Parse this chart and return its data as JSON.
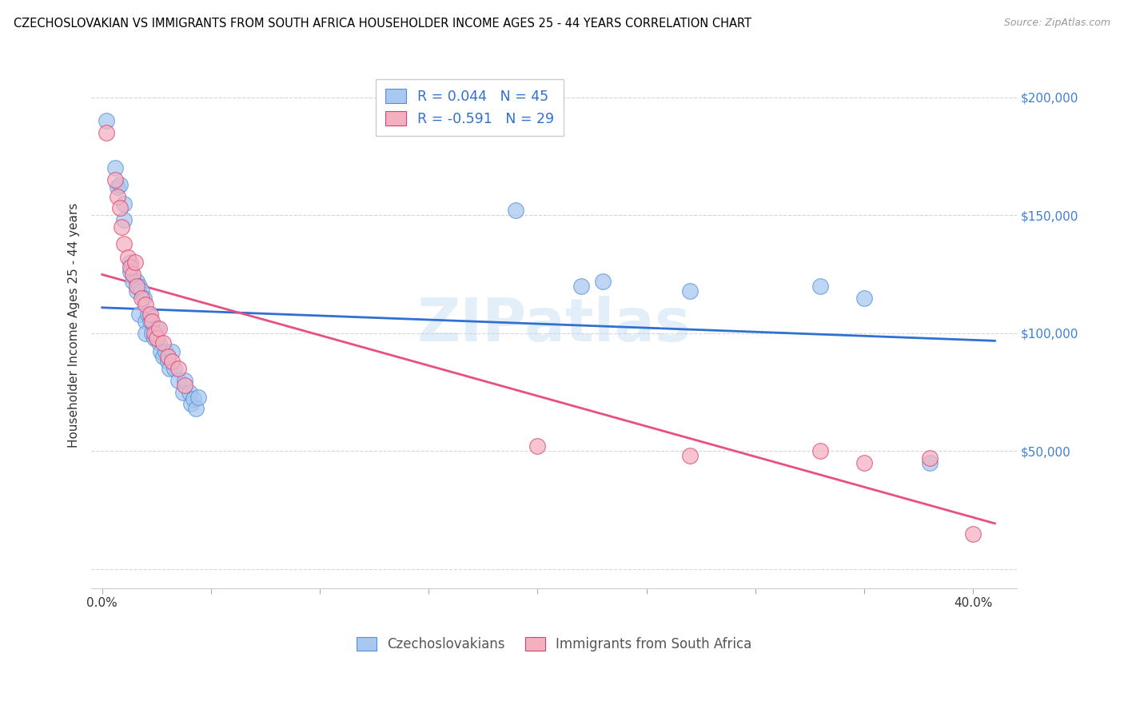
{
  "title": "CZECHOSLOVAKIAN VS IMMIGRANTS FROM SOUTH AFRICA HOUSEHOLDER INCOME AGES 25 - 44 YEARS CORRELATION CHART",
  "source": "Source: ZipAtlas.com",
  "xlim": [
    -0.005,
    0.42
  ],
  "ylim": [
    -8000,
    215000
  ],
  "ylabel": "Householder Income Ages 25 - 44 years",
  "blue_label": "Czechoslovakians",
  "pink_label": "Immigrants from South Africa",
  "blue_R": "0.044",
  "blue_N": "45",
  "pink_R": "-0.591",
  "pink_N": "29",
  "blue_color": "#A8C8F0",
  "pink_color": "#F5B0C0",
  "blue_line_color": "#3070D0",
  "pink_line_color": "#E85080",
  "blue_edge_color": "#5090D8",
  "pink_edge_color": "#D84070",
  "watermark": "ZIPatlas",
  "ytick_color": "#4080D0",
  "blue_points": [
    [
      0.002,
      190000
    ],
    [
      0.006,
      170000
    ],
    [
      0.007,
      162000
    ],
    [
      0.008,
      163000
    ],
    [
      0.01,
      155000
    ],
    [
      0.01,
      148000
    ],
    [
      0.013,
      130000
    ],
    [
      0.013,
      126000
    ],
    [
      0.014,
      122000
    ],
    [
      0.016,
      122000
    ],
    [
      0.016,
      118000
    ],
    [
      0.017,
      120000
    ],
    [
      0.017,
      108000
    ],
    [
      0.018,
      118000
    ],
    [
      0.019,
      115000
    ],
    [
      0.02,
      105000
    ],
    [
      0.02,
      100000
    ],
    [
      0.021,
      108000
    ],
    [
      0.022,
      105000
    ],
    [
      0.023,
      100000
    ],
    [
      0.024,
      98000
    ],
    [
      0.025,
      102000
    ],
    [
      0.026,
      96000
    ],
    [
      0.027,
      92000
    ],
    [
      0.028,
      90000
    ],
    [
      0.029,
      92000
    ],
    [
      0.03,
      88000
    ],
    [
      0.031,
      85000
    ],
    [
      0.032,
      92000
    ],
    [
      0.033,
      85000
    ],
    [
      0.035,
      80000
    ],
    [
      0.037,
      75000
    ],
    [
      0.038,
      80000
    ],
    [
      0.04,
      75000
    ],
    [
      0.041,
      70000
    ],
    [
      0.042,
      72000
    ],
    [
      0.043,
      68000
    ],
    [
      0.044,
      73000
    ],
    [
      0.19,
      152000
    ],
    [
      0.22,
      120000
    ],
    [
      0.23,
      122000
    ],
    [
      0.27,
      118000
    ],
    [
      0.33,
      120000
    ],
    [
      0.35,
      115000
    ],
    [
      0.38,
      45000
    ]
  ],
  "pink_points": [
    [
      0.002,
      185000
    ],
    [
      0.006,
      165000
    ],
    [
      0.007,
      158000
    ],
    [
      0.008,
      153000
    ],
    [
      0.009,
      145000
    ],
    [
      0.01,
      138000
    ],
    [
      0.012,
      132000
    ],
    [
      0.013,
      128000
    ],
    [
      0.014,
      125000
    ],
    [
      0.015,
      130000
    ],
    [
      0.016,
      120000
    ],
    [
      0.018,
      115000
    ],
    [
      0.02,
      112000
    ],
    [
      0.022,
      108000
    ],
    [
      0.023,
      105000
    ],
    [
      0.024,
      100000
    ],
    [
      0.025,
      98000
    ],
    [
      0.026,
      102000
    ],
    [
      0.028,
      96000
    ],
    [
      0.03,
      90000
    ],
    [
      0.032,
      88000
    ],
    [
      0.035,
      85000
    ],
    [
      0.038,
      78000
    ],
    [
      0.2,
      52000
    ],
    [
      0.27,
      48000
    ],
    [
      0.33,
      50000
    ],
    [
      0.35,
      45000
    ],
    [
      0.38,
      47000
    ],
    [
      0.4,
      15000
    ]
  ]
}
